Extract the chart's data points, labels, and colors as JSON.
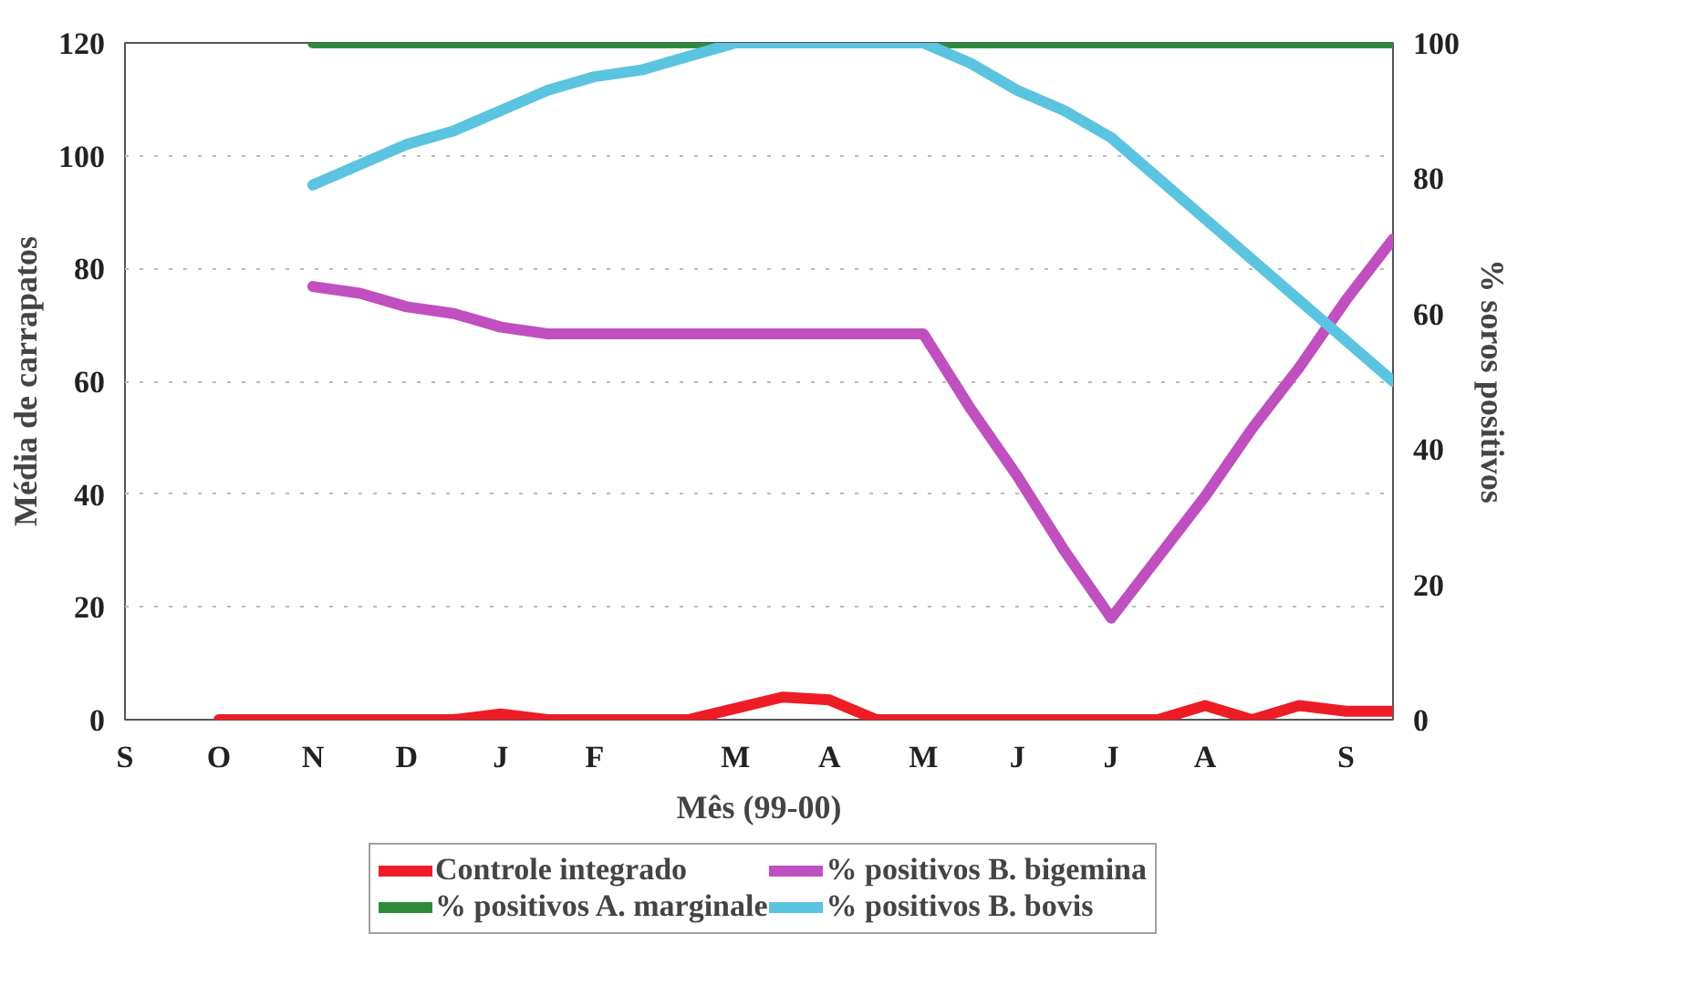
{
  "chart_data": {
    "type": "line",
    "xlabel": "Mês (99-00)",
    "ylabel": "Média de carrapatos",
    "y2label": "% soros positivos",
    "categories": [
      "S",
      null,
      "O",
      null,
      "N",
      null,
      "D",
      null,
      "J",
      null,
      "F",
      null,
      null,
      "M",
      null,
      "A",
      null,
      "M",
      null,
      "J",
      null,
      "J",
      null,
      "A",
      null,
      null,
      "S",
      null
    ],
    "ylim": [
      0,
      120
    ],
    "yticks": [
      0,
      20,
      40,
      60,
      80,
      100,
      120
    ],
    "y2lim": [
      0,
      100
    ],
    "y2ticks": [
      0,
      20,
      40,
      60,
      80,
      100
    ],
    "grid": "y",
    "legend": "bottom",
    "line_style": "solid",
    "series": [
      {
        "name": "Controle integrado",
        "color": "#ee1c25",
        "values": [
          null,
          null,
          0,
          0,
          0,
          0,
          0,
          0,
          1,
          0,
          0,
          0,
          0,
          2,
          4,
          3.5,
          0,
          0,
          0,
          0,
          0,
          0,
          0,
          2.5,
          0,
          2.5,
          1.5,
          1.5
        ]
      },
      {
        "name": "% positivos A. marginale",
        "color": "#2e8b3e",
        "axis": "y2",
        "values": [
          null,
          null,
          null,
          null,
          100,
          100,
          100,
          100,
          100,
          100,
          100,
          100,
          100,
          100,
          100,
          100,
          100,
          100,
          100,
          100,
          100,
          100,
          100,
          100,
          100,
          100,
          100,
          100
        ]
      },
      {
        "name": "% positivos B. bigemina",
        "color": "#c04fc0",
        "axis": "y2",
        "values": [
          null,
          null,
          null,
          null,
          64,
          63,
          61,
          60,
          58,
          57,
          57,
          57,
          57,
          57,
          57,
          57,
          57,
          57,
          46,
          36,
          25,
          15,
          24,
          33,
          43,
          52,
          62,
          71
        ]
      },
      {
        "name": "% positivos B. bovis",
        "color": "#5bc4e0",
        "axis": "y2",
        "values": [
          null,
          null,
          null,
          null,
          79,
          82,
          85,
          87,
          90,
          93,
          95,
          96,
          98,
          100,
          100,
          100,
          100,
          100,
          97,
          93,
          90,
          86,
          80,
          74,
          68,
          62,
          56,
          50
        ]
      }
    ]
  }
}
